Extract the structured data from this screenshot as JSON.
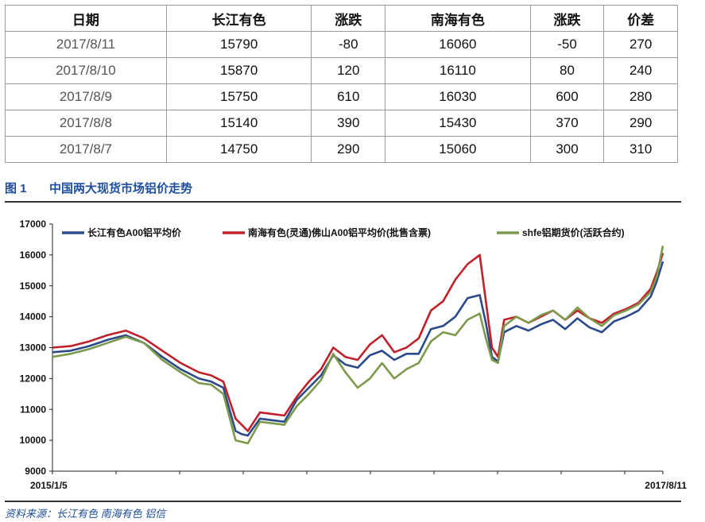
{
  "table": {
    "headers": [
      "日期",
      "长江有色",
      "涨跌",
      "南海有色",
      "涨跌",
      "价差"
    ],
    "rows": [
      [
        "2017/8/11",
        "15790",
        "-80",
        "16060",
        "-50",
        "270"
      ],
      [
        "2017/8/10",
        "15870",
        "120",
        "16110",
        "80",
        "240"
      ],
      [
        "2017/8/9",
        "15750",
        "610",
        "16030",
        "600",
        "280"
      ],
      [
        "2017/8/8",
        "15140",
        "390",
        "15430",
        "370",
        "290"
      ],
      [
        "2017/8/7",
        "14750",
        "290",
        "15060",
        "300",
        "310"
      ]
    ]
  },
  "figure": {
    "number": "图 1",
    "title": "中国两大现货市场铝价走势"
  },
  "source": "资料来源：长江有色    南海有色    铝信",
  "chart_data": {
    "type": "line",
    "ylim": [
      9000,
      17000
    ],
    "yticks": [
      9000,
      10000,
      11000,
      12000,
      13000,
      14000,
      15000,
      16000,
      17000
    ],
    "xstart_label": "2015/1/5",
    "xend_label": "2017/8/11",
    "legend_position": "top",
    "x": [
      0,
      0.03,
      0.06,
      0.09,
      0.12,
      0.15,
      0.18,
      0.21,
      0.24,
      0.26,
      0.28,
      0.3,
      0.31,
      0.32,
      0.34,
      0.36,
      0.38,
      0.4,
      0.42,
      0.44,
      0.46,
      0.48,
      0.5,
      0.52,
      0.54,
      0.56,
      0.58,
      0.6,
      0.62,
      0.64,
      0.66,
      0.68,
      0.7,
      0.71,
      0.72,
      0.73,
      0.74,
      0.76,
      0.78,
      0.8,
      0.82,
      0.84,
      0.86,
      0.88,
      0.9,
      0.92,
      0.94,
      0.96,
      0.98,
      0.99,
      1.0
    ],
    "series": [
      {
        "name": "长江有色A00铝平均价",
        "color": "#2b4a8a",
        "values": [
          12850,
          12900,
          13050,
          13250,
          13400,
          13150,
          12700,
          12300,
          12000,
          11900,
          11700,
          10300,
          10200,
          10150,
          10700,
          10650,
          10600,
          11300,
          11700,
          12100,
          12750,
          12450,
          12350,
          12750,
          12900,
          12600,
          12800,
          12800,
          13600,
          13700,
          14000,
          14600,
          14700,
          13800,
          12700,
          12550,
          13500,
          13700,
          13550,
          13750,
          13900,
          13600,
          13950,
          13650,
          13500,
          13850,
          14000,
          14200,
          14650,
          15140,
          15790
        ]
      },
      {
        "name": "南海有色(灵通)佛山A00铝平均价(批售含票)",
        "color": "#c0202a",
        "values": [
          13000,
          13050,
          13200,
          13400,
          13550,
          13300,
          12900,
          12500,
          12200,
          12100,
          11900,
          10700,
          10500,
          10300,
          10900,
          10850,
          10800,
          11400,
          11900,
          12300,
          13000,
          12700,
          12600,
          13100,
          13400,
          12850,
          13000,
          13300,
          14200,
          14500,
          15200,
          15700,
          16000,
          14500,
          13000,
          12700,
          13900,
          14000,
          13800,
          14000,
          14200,
          13900,
          14200,
          13950,
          13800,
          14100,
          14250,
          14450,
          14900,
          15430,
          16060
        ]
      },
      {
        "name": "shfe铝期货价(活跃合约)",
        "color": "#7d9a4c",
        "values": [
          12700,
          12800,
          12950,
          13150,
          13350,
          13150,
          12600,
          12200,
          11850,
          11800,
          11500,
          10000,
          9950,
          9900,
          10600,
          10550,
          10500,
          11100,
          11500,
          11950,
          12800,
          12200,
          11700,
          12000,
          12500,
          12000,
          12300,
          12500,
          13200,
          13500,
          13400,
          13900,
          14100,
          13300,
          12600,
          12500,
          13700,
          14000,
          13800,
          14050,
          14200,
          13900,
          14300,
          13950,
          13700,
          14050,
          14200,
          14400,
          14800,
          15300,
          16300
        ]
      }
    ]
  }
}
